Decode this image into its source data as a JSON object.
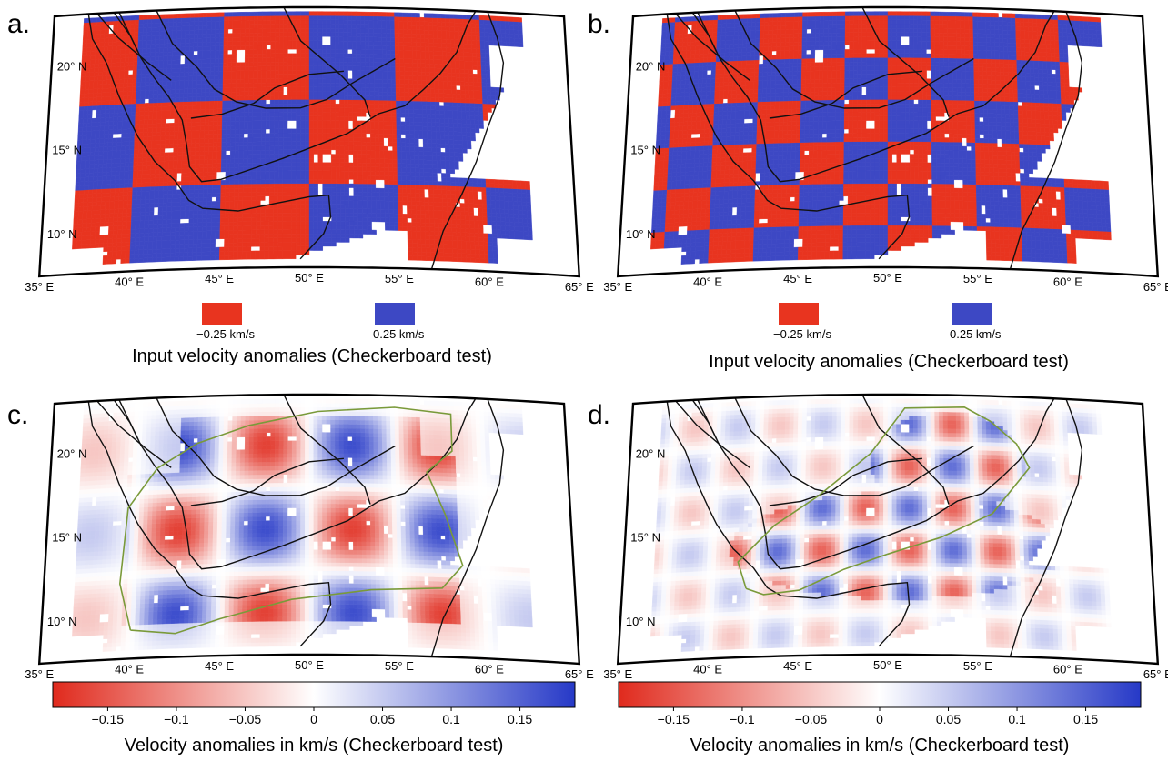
{
  "panels": [
    {
      "id": "a",
      "label": "a.",
      "type": "checker",
      "cell_deg": 5
    },
    {
      "id": "b",
      "label": "b.",
      "type": "checker",
      "cell_deg": 2.5
    },
    {
      "id": "c",
      "label": "c.",
      "type": "smooth",
      "cell_deg": 5
    },
    {
      "id": "d",
      "label": "d.",
      "type": "smooth",
      "cell_deg": 2.5
    }
  ],
  "map": {
    "lon_range": [
      35,
      65
    ],
    "lat_range": [
      7.5,
      23
    ],
    "lon_ticks": [
      {
        "value": 35,
        "label": "35° E"
      },
      {
        "value": 40,
        "label": "40° E"
      },
      {
        "value": 45,
        "label": "45° E"
      },
      {
        "value": 50,
        "label": "50° E"
      },
      {
        "value": 55,
        "label": "55° E"
      },
      {
        "value": 60,
        "label": "60° E"
      },
      {
        "value": 65,
        "label": "65° E"
      }
    ],
    "lat_ticks": [
      {
        "value": 20,
        "label": "20° N"
      },
      {
        "value": 15,
        "label": "15° N"
      },
      {
        "value": 10,
        "label": "10° N"
      }
    ]
  },
  "legend_top": {
    "neg_label": "−0.25 km/s",
    "pos_label": "0.25 km/s",
    "neg_color": "#e8341f",
    "pos_color": "#3d48c4",
    "caption": "Input velocity anomalies (Checkerboard test)"
  },
  "colorbar": {
    "range": [
      -0.19,
      0.19
    ],
    "ticks": [
      {
        "value": -0.15,
        "label": "−0.15"
      },
      {
        "value": -0.1,
        "label": "−0.1"
      },
      {
        "value": -0.05,
        "label": "−0.05"
      },
      {
        "value": 0,
        "label": "0"
      },
      {
        "value": 0.05,
        "label": "0.05"
      },
      {
        "value": 0.1,
        "label": "0.1"
      },
      {
        "value": 0.15,
        "label": "0.15"
      }
    ],
    "caption": "Velocity anomalies in km/s (Checkerboard test)",
    "neg_color": "#e02a1d",
    "pos_color": "#2639c7",
    "contour_color": "#7a9a3a"
  }
}
